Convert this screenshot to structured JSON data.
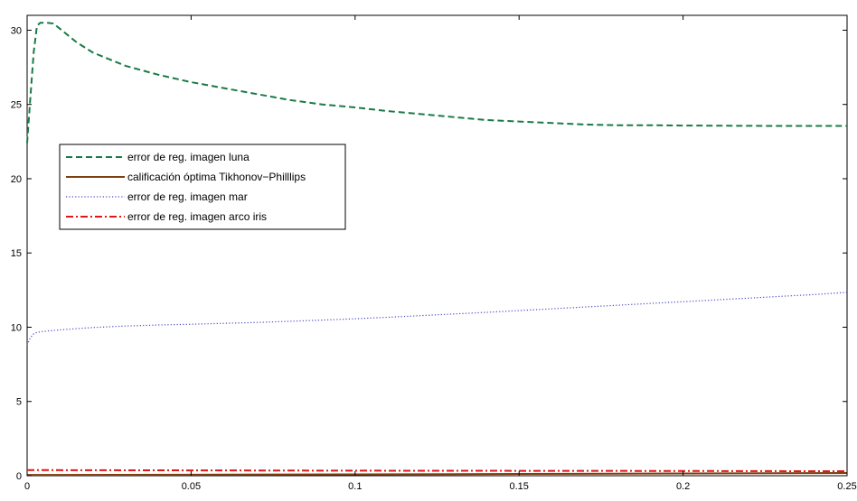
{
  "chart_data": {
    "type": "line",
    "title": "",
    "xlabel": "",
    "ylabel": "",
    "xlim": [
      0,
      0.25
    ],
    "ylim": [
      0,
      31
    ],
    "grid": false,
    "legend_position": "upper-left",
    "x_ticks": [
      0,
      0.05,
      0.1,
      0.15,
      0.2,
      0.25
    ],
    "x_tick_labels": [
      "0",
      "0.05",
      "0.1",
      "0.15",
      "0.2",
      "0.25"
    ],
    "y_ticks": [
      0,
      5,
      10,
      15,
      20,
      25,
      30
    ],
    "y_tick_labels": [
      "0",
      "5",
      "10",
      "15",
      "20",
      "25",
      "30"
    ],
    "series": [
      {
        "name": "error de reg. imagen luna",
        "color": "#1a7a45",
        "style": "dashed",
        "x": [
          0,
          0.001,
          0.002,
          0.003,
          0.004,
          0.006,
          0.008,
          0.01,
          0.015,
          0.02,
          0.03,
          0.04,
          0.05,
          0.06,
          0.07,
          0.08,
          0.09,
          0.1,
          0.11,
          0.12,
          0.13,
          0.14,
          0.15,
          0.16,
          0.17,
          0.18,
          0.19,
          0.2,
          0.21,
          0.22,
          0.23,
          0.24,
          0.25
        ],
        "y": [
          22.4,
          25.5,
          28.5,
          30.3,
          30.5,
          30.5,
          30.45,
          30.1,
          29.2,
          28.5,
          27.6,
          27.0,
          26.5,
          26.1,
          25.7,
          25.3,
          25.0,
          24.8,
          24.55,
          24.35,
          24.15,
          23.95,
          23.85,
          23.75,
          23.65,
          23.6,
          23.6,
          23.58,
          23.57,
          23.56,
          23.55,
          23.55,
          23.55
        ]
      },
      {
        "name": "calificación óptima Tikhonov−Philllips",
        "color": "#7f3f10",
        "style": "solid",
        "x": [
          0,
          0.05,
          0.1,
          0.15,
          0.2,
          0.25
        ],
        "y": [
          0.05,
          0.07,
          0.09,
          0.12,
          0.15,
          0.18
        ]
      },
      {
        "name": "error de reg. imagen mar",
        "color": "#4b4bc8",
        "style": "dotted",
        "x": [
          0,
          0.001,
          0.002,
          0.003,
          0.005,
          0.008,
          0.01,
          0.02,
          0.03,
          0.04,
          0.05,
          0.06,
          0.07,
          0.08,
          0.09,
          0.1,
          0.11,
          0.12,
          0.13,
          0.14,
          0.15,
          0.16,
          0.17,
          0.18,
          0.19,
          0.2,
          0.21,
          0.22,
          0.23,
          0.24,
          0.25
        ],
        "y": [
          8.8,
          9.3,
          9.55,
          9.65,
          9.72,
          9.78,
          9.82,
          9.98,
          10.08,
          10.15,
          10.2,
          10.26,
          10.32,
          10.4,
          10.48,
          10.57,
          10.67,
          10.78,
          10.89,
          11.0,
          11.12,
          11.24,
          11.36,
          11.48,
          11.6,
          11.72,
          11.84,
          11.96,
          12.08,
          12.2,
          12.35
        ]
      },
      {
        "name": "error de reg. imagen arco iris",
        "color": "#e01515",
        "style": "dashdot",
        "x": [
          0,
          0.05,
          0.1,
          0.15,
          0.2,
          0.25
        ],
        "y": [
          0.38,
          0.36,
          0.34,
          0.33,
          0.32,
          0.3
        ]
      }
    ]
  }
}
